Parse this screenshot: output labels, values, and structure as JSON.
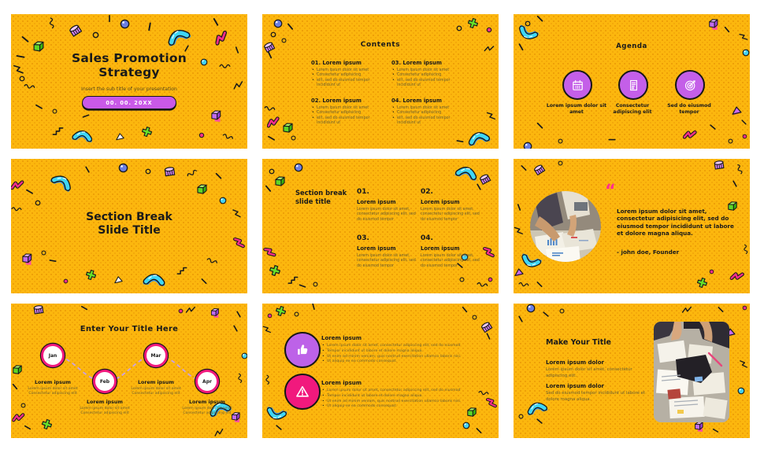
{
  "template_name": "Sales Promotion Strategy",
  "colors": {
    "background_yellow": "#FCB70E",
    "dot_orange": "#DE8400",
    "text_black": "#1A1A1A",
    "text_muted_olive": "#6B5F2E",
    "purple": "#C45FE8",
    "pink": "#F1197D",
    "magenta": "#FF2E8C",
    "cyan": "#3FD6F5",
    "green": "#66E02A",
    "lavender_dash": "#C9A0E8"
  },
  "slides": [
    {
      "name": "title",
      "title_line1": "Sales Promotion",
      "title_line2": "Strategy",
      "subtitle": "Insert the sub title of your presentation",
      "date_placeholder": "00. 00. 20XX"
    },
    {
      "name": "contents",
      "title": "Contents",
      "items": [
        {
          "heading": "01. Lorem ipsum",
          "bullets": [
            "Lorem ipsum dolor sit amet",
            "Consectetur adipisicing",
            "elit, sed do eiusmod tempor incididunt ut"
          ]
        },
        {
          "heading": "02. Lorem ipsum",
          "bullets": [
            "Lorem ipsum dolor sit amet",
            "Consectetur adipisicing",
            "elit, sed do eiusmod tempor incididunt ut"
          ]
        },
        {
          "heading": "03. Lorem ipsum",
          "bullets": [
            "Lorem ipsum dolor sit amet",
            "Consectetur adipisicing",
            "elit, sed do eiusmod tempor incididunt ut"
          ]
        },
        {
          "heading": "04. Lorem ipsum",
          "bullets": [
            "Lorem ipsum dolor sit amet",
            "Consectetur adipisicing",
            "elit, sed do eiusmod tempor incididunt ut"
          ]
        }
      ]
    },
    {
      "name": "agenda",
      "title": "Agenda",
      "items": [
        {
          "icon": "calendar-icon",
          "label": "Lorem ipsum dolor sit amet"
        },
        {
          "icon": "receipt-icon",
          "label": "Consectetur adipiscing elit"
        },
        {
          "icon": "target-icon",
          "label": "Sed do eiusmod tempor"
        }
      ]
    },
    {
      "name": "section-break",
      "title_line1": "Section Break",
      "title_line2": "Slide Title"
    },
    {
      "name": "section-break-grid",
      "title_line1": "Section break",
      "title_line2": "slide title",
      "items": [
        {
          "number": "01.",
          "heading": "Lorem ipsum",
          "body": "Lorem ipsum dolor sit amet, consectetur adipiscing elit, sed do eiusmod tempor"
        },
        {
          "number": "02.",
          "heading": "Lorem ipsum",
          "body": "Lorem ipsum dolor sit amet, consectetur adipiscing elit, sed do eiusmod tempor"
        },
        {
          "number": "03.",
          "heading": "Lorem ipsum",
          "body": "Lorem ipsum dolor sit amet, consectetur adipiscing elit, sed do eiusmod tempor"
        },
        {
          "number": "04.",
          "heading": "Lorem ipsum",
          "body": "Lorem ipsum dolor sit amet, consectetur adipiscing elit, sed do eiusmod tempor"
        }
      ]
    },
    {
      "name": "quote",
      "quote_mark": "“",
      "text": "Lorem ipsum dolor sit amet, consectetur adipisicing elit, sed do eiusmod tempor incididunt ut labore et dolore magna aliqua.",
      "attribution": "- john doe, Founder"
    },
    {
      "name": "timeline",
      "title": "Enter Your Title Here",
      "items": [
        {
          "month": "Jan",
          "heading": "Lorem ipsum",
          "body": "Lorem ipsum dolor sit amet Consectetur adipiscing elit"
        },
        {
          "month": "Feb",
          "heading": "Lorem ipsum",
          "body": "Lorem ipsum dolor sit amet Consectetur adipiscing elit"
        },
        {
          "month": "Mar",
          "heading": "Lorem ipsum",
          "body": "Lorem ipsum dolor sit amet Consectetur adipiscing elit"
        },
        {
          "month": "Apr",
          "heading": "Lorem ipsum",
          "body": "Lorem ipsum dolor sit amet Consectetur adipiscing elit"
        }
      ]
    },
    {
      "name": "bullet-lists",
      "items": [
        {
          "icon": "thumbs-up-icon",
          "heading": "Lorem ipsum",
          "bullets": [
            "Lorem ipsum dolor sit amet, consectetur adipiscing elit, sed do eiusmod",
            "Tempor incididunt ut labore et dolore magna aliqua.",
            "Ut enim ad minim veniam, quis nostrud exercitation ullamco laboris nisi.",
            "Ut aliquip ex ea commodo consequat."
          ]
        },
        {
          "icon": "warning-icon",
          "heading": "Lorem ipsum",
          "bullets": [
            "Lorem ipsum dolor sit amet, consectetur adipiscing elit, sed do eiusmod",
            "Tempor incididunt ut labore et dolore magna aliqua.",
            "Ut enim ad minim veniam, quis nostrud exercitation ullamco laboris nisi.",
            "Ut aliquip ex ea commodo consequat."
          ]
        }
      ]
    },
    {
      "name": "make-your-title",
      "title": "Make Your Title",
      "items": [
        {
          "heading": "Lorem ipsum dolor",
          "body": "Lorem ipsum dolor sit amet, consectetur adipiscing elit."
        },
        {
          "heading": "Lorem ipsum dolor",
          "body": "Sed do eiusmod tempor incididunt ut labore et dolore magna aliqua."
        }
      ]
    }
  ]
}
